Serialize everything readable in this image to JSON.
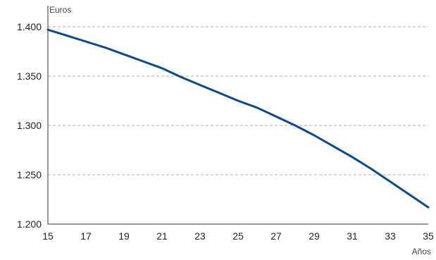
{
  "chart_data": {
    "type": "line",
    "y_unit_label": "Euros",
    "xlabel": "Años",
    "x_ticks": [
      "15",
      "17",
      "19",
      "21",
      "23",
      "25",
      "27",
      "29",
      "31",
      "33",
      "35"
    ],
    "y_ticks": [
      "1.200",
      "1.250",
      "1.300",
      "1.350",
      "1.400"
    ],
    "xlim": [
      15,
      35
    ],
    "ylim": [
      1200,
      1420
    ],
    "grid": "horizontal dashed",
    "series": [
      {
        "color": "#0b4a86",
        "x": [
          15,
          16,
          17,
          18,
          19,
          20,
          21,
          22,
          23,
          24,
          25,
          26,
          27,
          28,
          29,
          30,
          31,
          32,
          33,
          34,
          35
        ],
        "y": [
          1397,
          1391,
          1385,
          1379,
          1372,
          1365,
          1358,
          1349,
          1341,
          1333,
          1325,
          1318,
          1309,
          1300,
          1290,
          1279,
          1268,
          1256,
          1243,
          1230,
          1217
        ]
      }
    ]
  },
  "colors": {
    "line": "#0b4a86",
    "grid": "#aaaaaa",
    "axis": "#333333",
    "text": "#222222"
  }
}
